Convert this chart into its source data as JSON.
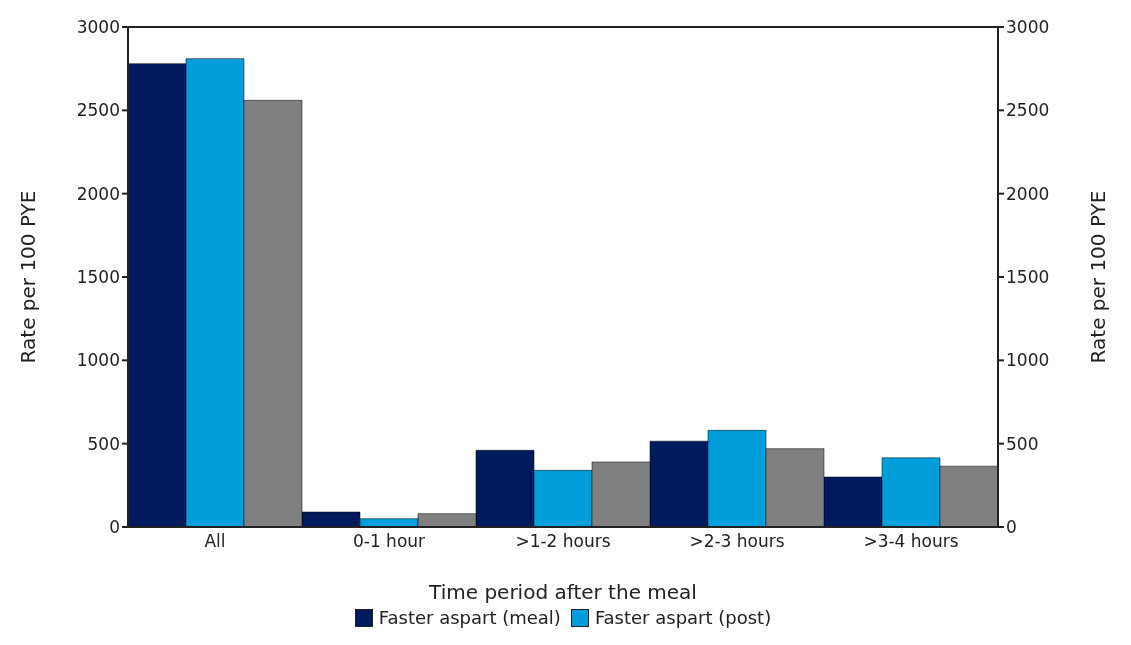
{
  "chart_data": {
    "type": "bar",
    "xlabel": "Time period after the meal",
    "ylabel": "Rate per 100 PYE",
    "y2label": "Rate per 100 PYE",
    "categories": [
      "All",
      "0-1 hour",
      ">1-2 hours",
      ">2-3 hours",
      ">3-4 hours"
    ],
    "series": [
      {
        "name": "Faster aspart (meal)",
        "color": "#001a5e",
        "values": [
          2780,
          90,
          460,
          515,
          300
        ]
      },
      {
        "name": "Faster aspart (post)",
        "color": "#009fdb",
        "values": [
          2810,
          50,
          340,
          580,
          415
        ]
      },
      {
        "color": "#808080",
        "values": [
          2560,
          80,
          390,
          470,
          365
        ]
      }
    ],
    "ylim": [
      0,
      3000
    ],
    "yticks": [
      0,
      500,
      1000,
      1500,
      2000,
      2500,
      3000
    ],
    "y2lim": [
      0,
      3000
    ],
    "y2ticks": [
      0,
      500,
      1000,
      1500,
      2000,
      2500,
      3000
    ],
    "grid": false,
    "legend": "bottom"
  }
}
